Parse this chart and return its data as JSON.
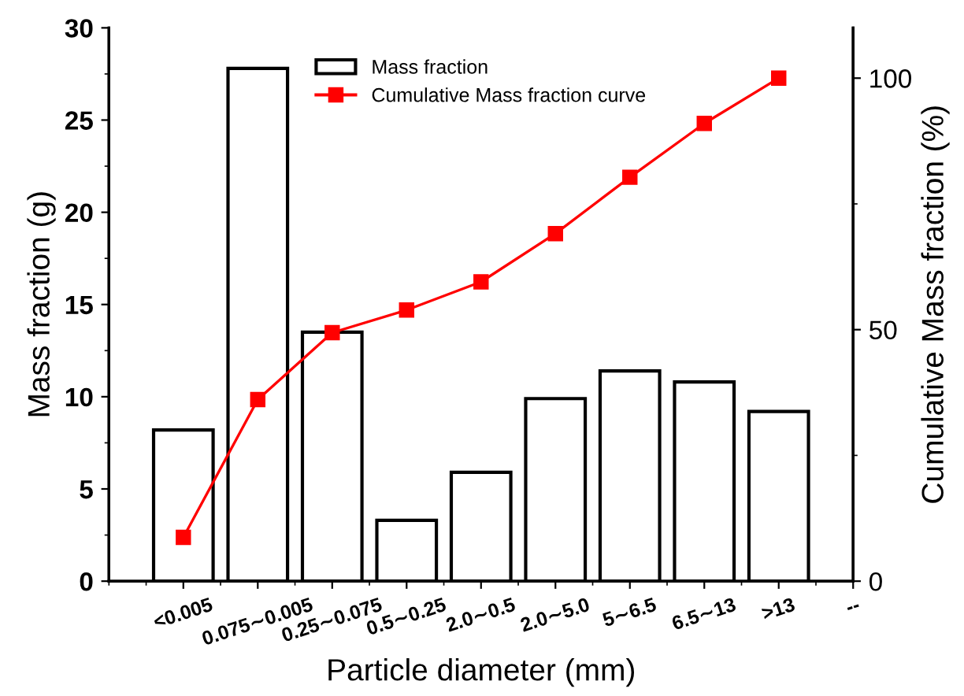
{
  "chart_data": {
    "type": "bar",
    "xlabel": "Particle diameter (mm)",
    "ylabel": "Mass fraction (g)",
    "y2label": "Cumulative Mass fraction (%)",
    "categories": [
      "<0.005",
      "0.075∼0.005",
      "0.25∼0.075",
      "0.5∼0.25",
      "2.0∼0.5",
      "2.0∼5.0",
      "5∼6.5",
      "6.5∼13",
      ">13",
      "--"
    ],
    "series": [
      {
        "name": "Mass fraction",
        "color": "#ffffff",
        "values": [
          8.2,
          27.8,
          13.5,
          3.3,
          5.9,
          9.9,
          11.4,
          10.8,
          9.2,
          null
        ]
      },
      {
        "name": "Cumulative Mass fraction curve",
        "type": "line",
        "axis": "y2",
        "color": "#ff0000",
        "values": [
          8.7,
          36.1,
          49.4,
          53.9,
          59.5,
          69.1,
          80.3,
          91,
          100,
          null
        ]
      }
    ],
    "ylim": [
      0,
      30
    ],
    "yticks": [
      0,
      5,
      10,
      15,
      20,
      25,
      30
    ],
    "y2lim": [
      0,
      110
    ],
    "y2ticks": [
      0,
      50,
      100
    ],
    "marker": "square",
    "line_style": "solid",
    "legend": "top",
    "grid": false
  }
}
